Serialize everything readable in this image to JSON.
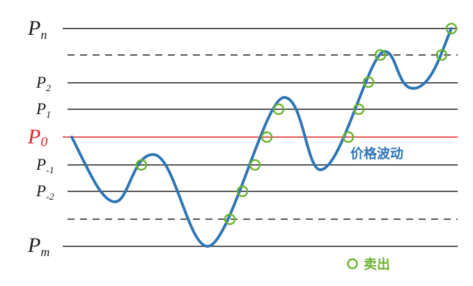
{
  "levels": [
    {
      "base": "P",
      "sub": "n"
    },
    {
      "base": "P",
      "sub": "2"
    },
    {
      "base": "P",
      "sub": "1"
    },
    {
      "base": "P",
      "sub": "0"
    },
    {
      "base": "P",
      "sub": "-1"
    },
    {
      "base": "P",
      "sub": "-2"
    },
    {
      "base": "P",
      "sub": "m"
    }
  ],
  "curve_label": "价格波动",
  "legend": {
    "label": "卖出"
  }
}
